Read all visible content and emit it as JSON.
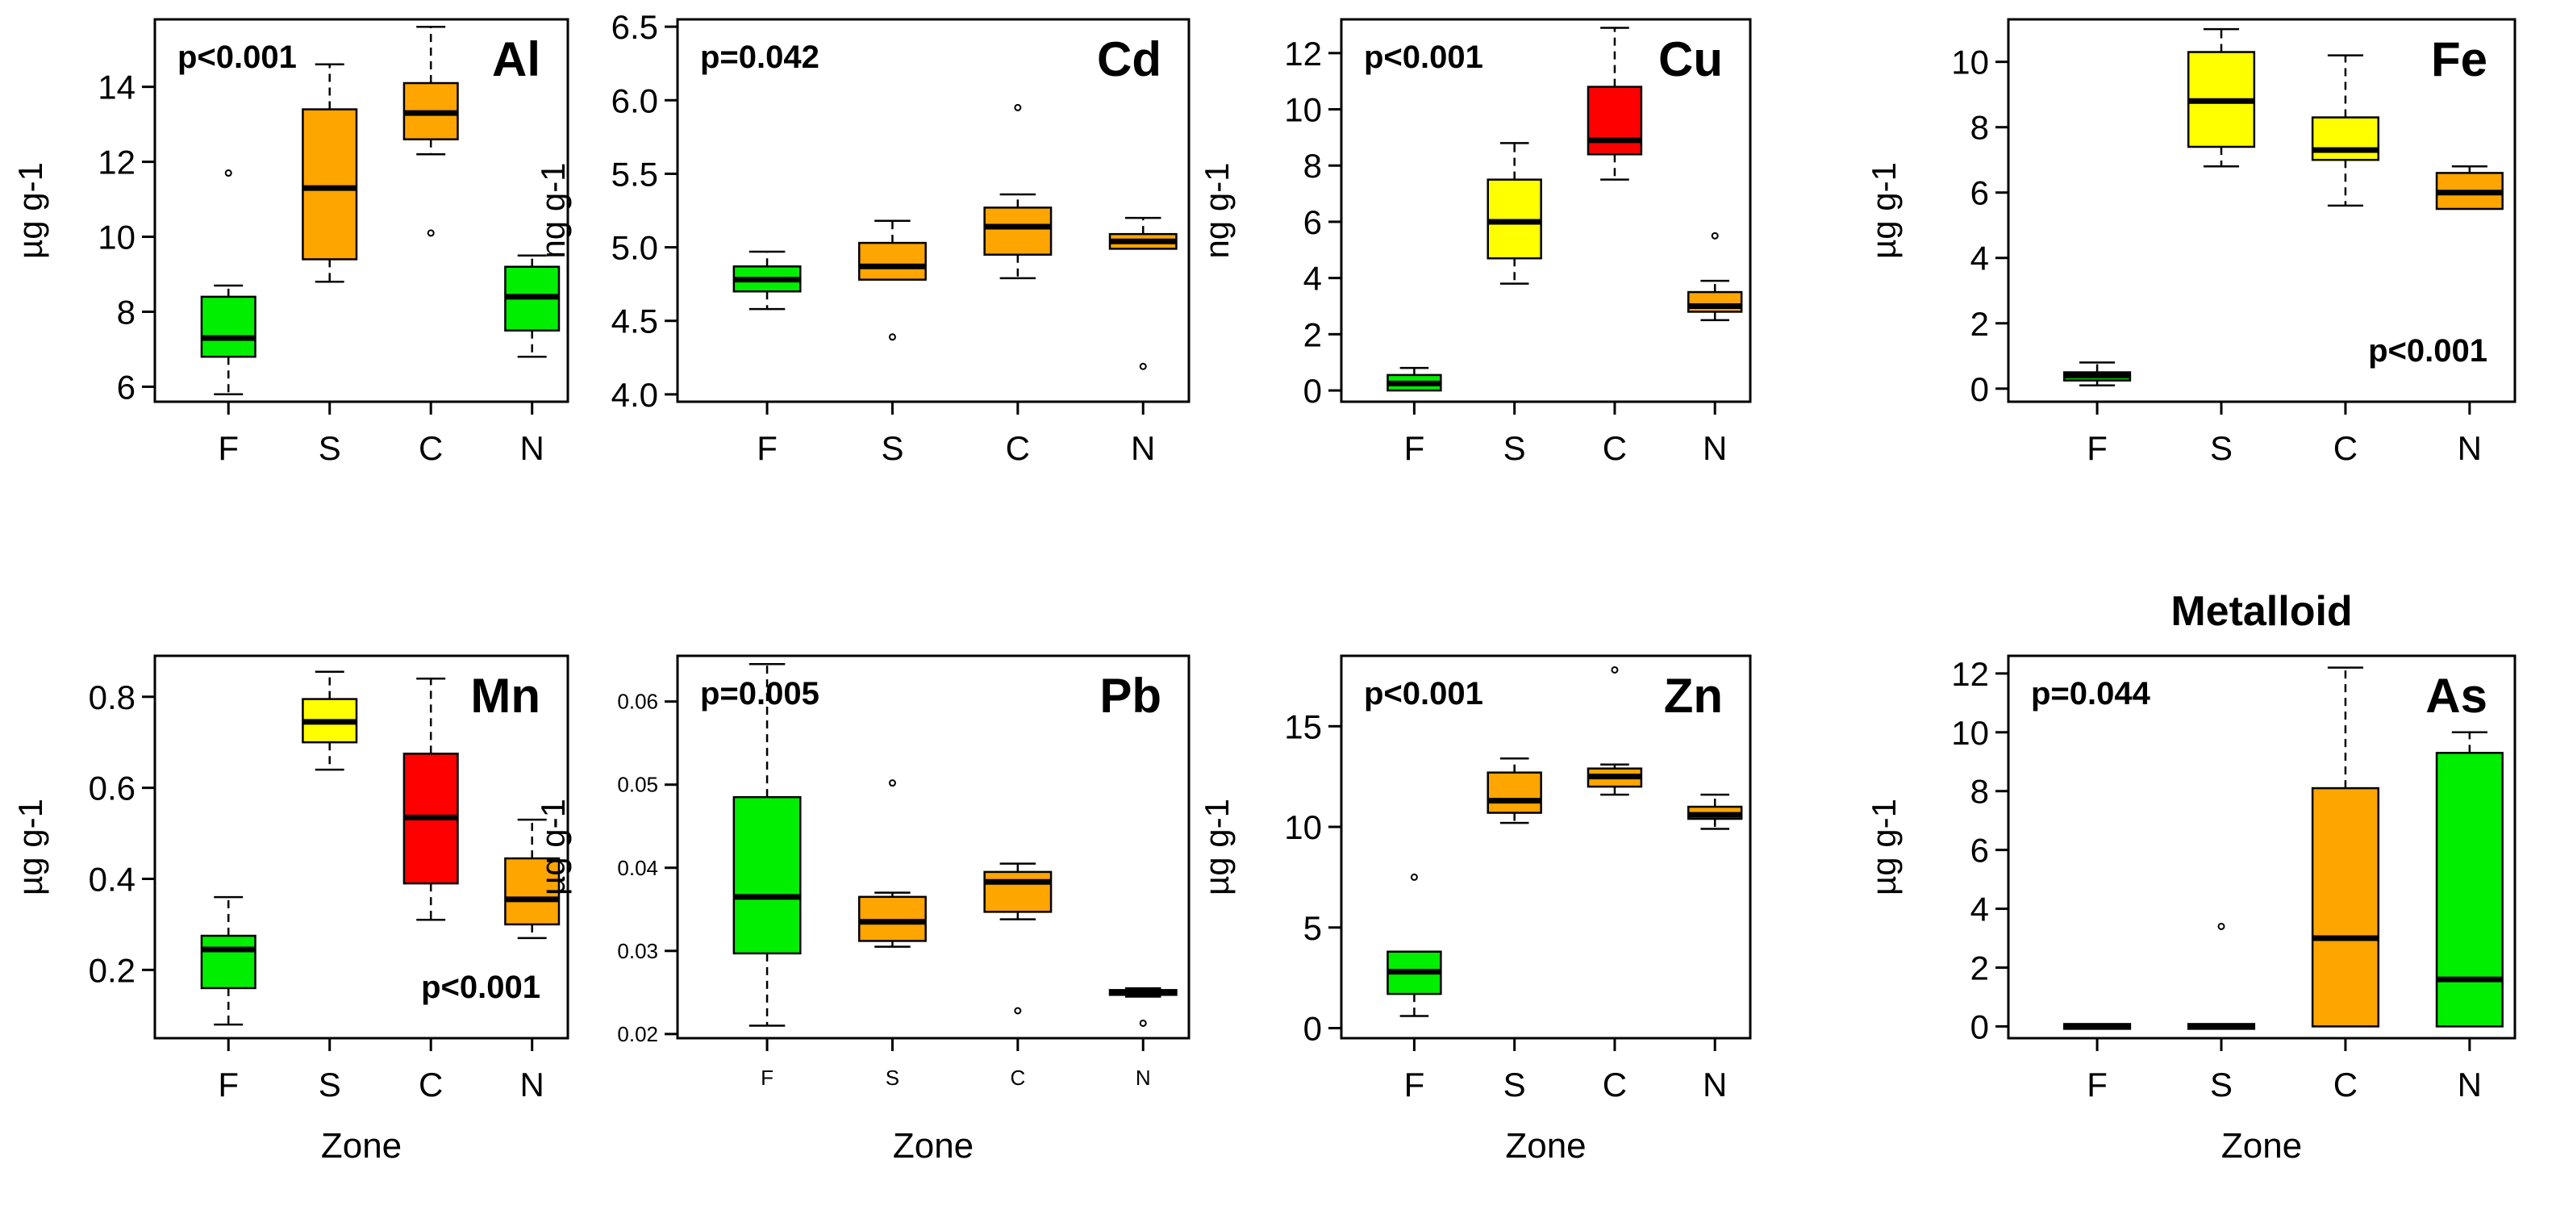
{
  "figure": {
    "zone_label": "Zone",
    "zones": [
      "F",
      "S",
      "C",
      "N"
    ]
  },
  "colors": {
    "green": "#00ee00",
    "yellow": "#ffff00",
    "orange": "#ffa500",
    "red": "#ff0000"
  },
  "chart_data": [
    {
      "type": "boxplot",
      "title": "Al",
      "p_value": "p<0.001",
      "p_position": "top-left",
      "ylabel": "µg g-1",
      "xlabel": "",
      "ylim": [
        5.6,
        15.8
      ],
      "yticks": [
        6,
        8,
        10,
        12,
        14
      ],
      "categories": [
        "F",
        "S",
        "C",
        "N"
      ],
      "boxes": [
        {
          "min": 5.8,
          "q1": 6.8,
          "median": 7.3,
          "q3": 8.4,
          "max": 8.7,
          "outliers": [
            11.7
          ],
          "color": "green"
        },
        {
          "min": 8.8,
          "q1": 9.4,
          "median": 11.3,
          "q3": 13.4,
          "max": 14.6,
          "outliers": [],
          "color": "orange"
        },
        {
          "min": 12.2,
          "q1": 12.6,
          "median": 13.3,
          "q3": 14.1,
          "max": 15.6,
          "outliers": [
            10.1
          ],
          "color": "orange"
        },
        {
          "min": 6.8,
          "q1": 7.5,
          "median": 8.4,
          "q3": 9.2,
          "max": 9.5,
          "outliers": [],
          "color": "green"
        }
      ]
    },
    {
      "type": "boxplot",
      "title": "Cd",
      "p_value": "p=0.042",
      "p_position": "top-left",
      "ylabel": "ng g-1",
      "xlabel": "",
      "ylim": [
        3.95,
        6.55
      ],
      "yticks": [
        "4.0",
        "4.5",
        "5.0",
        "5.5",
        "6.0",
        "6.5"
      ],
      "categories": [
        "F",
        "S",
        "C",
        "N"
      ],
      "boxes": [
        {
          "min": 4.58,
          "q1": 4.7,
          "median": 4.78,
          "q3": 4.87,
          "max": 4.97,
          "outliers": [],
          "color": "green"
        },
        {
          "min": 4.78,
          "q1": 4.78,
          "median": 4.87,
          "q3": 5.03,
          "max": 5.18,
          "outliers": [
            4.39
          ],
          "color": "orange"
        },
        {
          "min": 4.79,
          "q1": 4.95,
          "median": 5.14,
          "q3": 5.27,
          "max": 5.36,
          "outliers": [
            5.95
          ],
          "color": "orange"
        },
        {
          "min": 4.99,
          "q1": 4.99,
          "median": 5.04,
          "q3": 5.09,
          "max": 5.2,
          "outliers": [
            4.19
          ],
          "color": "orange"
        }
      ]
    },
    {
      "type": "boxplot",
      "title": "Cu",
      "p_value": "p<0.001",
      "p_position": "top-left",
      "ylabel": "ng g-1",
      "xlabel": "",
      "ylim": [
        -0.4,
        13.2
      ],
      "yticks": [
        0,
        2,
        4,
        6,
        8,
        10,
        12
      ],
      "categories": [
        "F",
        "S",
        "C",
        "N"
      ],
      "boxes": [
        {
          "min": 0.0,
          "q1": 0.0,
          "median": 0.25,
          "q3": 0.55,
          "max": 0.8,
          "outliers": [],
          "color": "green"
        },
        {
          "min": 3.8,
          "q1": 4.7,
          "median": 6.0,
          "q3": 7.5,
          "max": 8.8,
          "outliers": [],
          "color": "yellow"
        },
        {
          "min": 7.5,
          "q1": 8.4,
          "median": 8.9,
          "q3": 10.8,
          "max": 12.9,
          "outliers": [],
          "color": "red"
        },
        {
          "min": 2.5,
          "q1": 2.8,
          "median": 3.0,
          "q3": 3.5,
          "max": 3.9,
          "outliers": [
            5.5
          ],
          "color": "orange"
        }
      ]
    },
    {
      "type": "boxplot",
      "title": "Fe",
      "p_value": "p<0.001",
      "p_position": "bottom-right",
      "ylabel": "µg g-1",
      "xlabel": "",
      "ylim": [
        -0.4,
        11.3
      ],
      "yticks": [
        0,
        2,
        4,
        6,
        8,
        10
      ],
      "categories": [
        "F",
        "S",
        "C",
        "N"
      ],
      "boxes": [
        {
          "min": 0.1,
          "q1": 0.25,
          "median": 0.4,
          "q3": 0.5,
          "max": 0.8,
          "outliers": [],
          "color": "green"
        },
        {
          "min": 6.8,
          "q1": 7.4,
          "median": 8.8,
          "q3": 10.3,
          "max": 11.0,
          "outliers": [],
          "color": "yellow"
        },
        {
          "min": 5.6,
          "q1": 7.0,
          "median": 7.3,
          "q3": 8.3,
          "max": 10.2,
          "outliers": [],
          "color": "yellow"
        },
        {
          "min": 5.5,
          "q1": 5.5,
          "median": 6.0,
          "q3": 6.6,
          "max": 6.8,
          "outliers": [],
          "color": "orange"
        }
      ]
    },
    {
      "type": "boxplot",
      "title": "Mn",
      "p_value": "p<0.001",
      "p_position": "bottom-right",
      "ylabel": "µg g-1",
      "xlabel": "Zone",
      "ylim": [
        0.05,
        0.89
      ],
      "yticks": [
        "0.2",
        "0.4",
        "0.6",
        "0.8"
      ],
      "categories": [
        "F",
        "S",
        "C",
        "N"
      ],
      "boxes": [
        {
          "min": 0.08,
          "q1": 0.16,
          "median": 0.245,
          "q3": 0.275,
          "max": 0.36,
          "outliers": [],
          "color": "green"
        },
        {
          "min": 0.64,
          "q1": 0.7,
          "median": 0.745,
          "q3": 0.795,
          "max": 0.855,
          "outliers": [],
          "color": "yellow"
        },
        {
          "min": 0.31,
          "q1": 0.39,
          "median": 0.535,
          "q3": 0.675,
          "max": 0.84,
          "outliers": [],
          "color": "red"
        },
        {
          "min": 0.27,
          "q1": 0.3,
          "median": 0.355,
          "q3": 0.445,
          "max": 0.53,
          "outliers": [],
          "color": "orange"
        }
      ]
    },
    {
      "type": "boxplot",
      "title": "Pb",
      "p_value": "p=0.005",
      "p_position": "top-left",
      "ylabel": "µg g-1",
      "xlabel": "Zone",
      "ylim": [
        0.0195,
        0.0655
      ],
      "yticks": [
        "0.02",
        "0.03",
        "0.04",
        "0.05",
        "0.06"
      ],
      "small_ticks": true,
      "categories": [
        "F",
        "S",
        "C",
        "N"
      ],
      "boxes": [
        {
          "min": 0.021,
          "q1": 0.0297,
          "median": 0.0365,
          "q3": 0.0485,
          "max": 0.0645,
          "outliers": [],
          "color": "green"
        },
        {
          "min": 0.0305,
          "q1": 0.0312,
          "median": 0.0335,
          "q3": 0.0365,
          "max": 0.037,
          "outliers": [
            0.0502
          ],
          "color": "orange"
        },
        {
          "min": 0.0338,
          "q1": 0.0347,
          "median": 0.0383,
          "q3": 0.0395,
          "max": 0.0405,
          "outliers": [
            0.0228
          ],
          "color": "orange"
        },
        {
          "min": 0.0245,
          "q1": 0.0247,
          "median": 0.025,
          "q3": 0.0252,
          "max": 0.0255,
          "outliers": [
            0.0213
          ],
          "color": "orange"
        }
      ]
    },
    {
      "type": "boxplot",
      "title": "Zn",
      "p_value": "p<0.001",
      "p_position": "top-left",
      "ylabel": "µg g-1",
      "xlabel": "Zone",
      "ylim": [
        -0.5,
        18.5
      ],
      "yticks": [
        0,
        5,
        10,
        15
      ],
      "categories": [
        "F",
        "S",
        "C",
        "N"
      ],
      "boxes": [
        {
          "min": 0.6,
          "q1": 1.7,
          "median": 2.8,
          "q3": 3.8,
          "max": 3.8,
          "outliers": [
            7.5
          ],
          "color": "green"
        },
        {
          "min": 10.2,
          "q1": 10.7,
          "median": 11.3,
          "q3": 12.7,
          "max": 13.4,
          "outliers": [],
          "color": "orange"
        },
        {
          "min": 11.6,
          "q1": 12.0,
          "median": 12.5,
          "q3": 12.9,
          "max": 13.1,
          "outliers": [
            17.8
          ],
          "color": "orange"
        },
        {
          "min": 9.9,
          "q1": 10.4,
          "median": 10.6,
          "q3": 11.0,
          "max": 11.6,
          "outliers": [],
          "color": "orange"
        }
      ]
    },
    {
      "type": "boxplot",
      "title": "As",
      "supertitle": "Metalloid",
      "p_value": "p=0.044",
      "p_position": "top-left",
      "ylabel": "µg g-1",
      "xlabel": "Zone",
      "ylim": [
        -0.4,
        12.6
      ],
      "yticks": [
        0,
        2,
        4,
        6,
        8,
        10,
        12
      ],
      "categories": [
        "F",
        "S",
        "C",
        "N"
      ],
      "boxes": [
        {
          "min": 0.0,
          "q1": 0.0,
          "median": 0.0,
          "q3": 0.0,
          "max": 0.0,
          "outliers": [],
          "color": "green"
        },
        {
          "min": 0.0,
          "q1": 0.0,
          "median": 0.0,
          "q3": 0.0,
          "max": 0.0,
          "outliers": [
            3.4
          ],
          "color": "green"
        },
        {
          "min": 0.0,
          "q1": 0.0,
          "median": 3.0,
          "q3": 8.1,
          "max": 12.2,
          "outliers": [],
          "color": "orange"
        },
        {
          "min": 0.0,
          "q1": 0.0,
          "median": 1.6,
          "q3": 9.3,
          "max": 10.0,
          "outliers": [],
          "color": "green"
        }
      ]
    }
  ]
}
